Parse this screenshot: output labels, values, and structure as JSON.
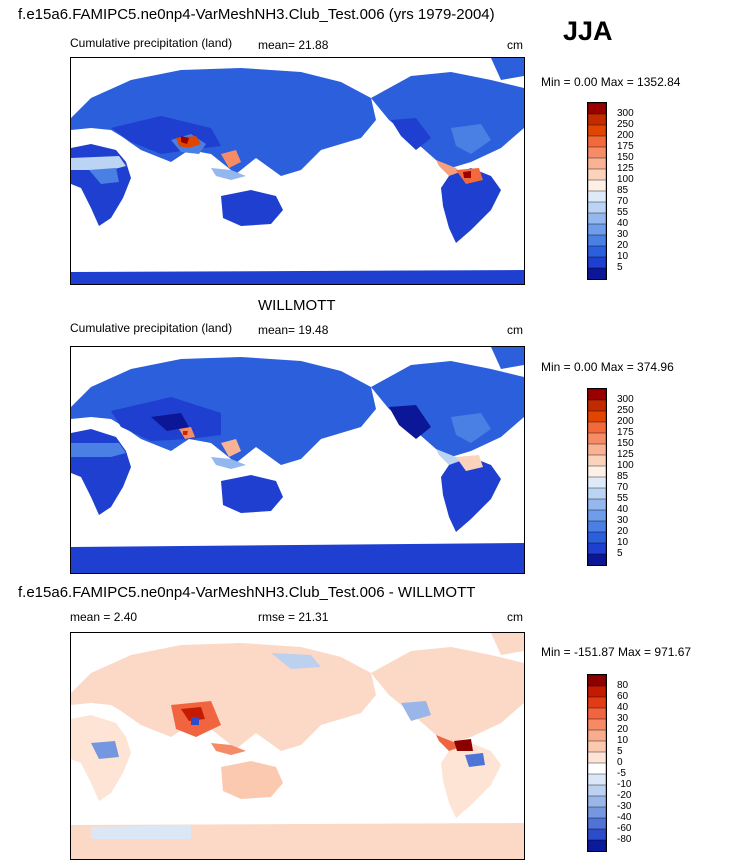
{
  "season": "JJA",
  "panels": [
    {
      "header": "f.e15a6.FAMIPC5.ne0np4-VarMeshNH3.Club_Test.006 (yrs 1979-2004)",
      "left_label": "Cumulative precipitation (land)",
      "mean_label": "mean=  21.88",
      "units": "cm",
      "minmax": "Min =   0.00 Max = 1352.84",
      "colorbar_labels": [
        "300",
        "250",
        "200",
        "175",
        "150",
        "125",
        "100",
        "85",
        "70",
        "55",
        "40",
        "30",
        "20",
        "10",
        "5"
      ],
      "colors": [
        "#990000",
        "#c42a00",
        "#e24500",
        "#f26a3c",
        "#f68c66",
        "#f9b394",
        "#fbd3bc",
        "#fef0e6",
        "#dfeaf8",
        "#bcd4f3",
        "#93b7ee",
        "#6f9de9",
        "#4a7fe3",
        "#2c5fdc",
        "#1e3fcf",
        "#0b1796"
      ]
    },
    {
      "header": "WILLMOTT",
      "left_label": "Cumulative precipitation (land)",
      "mean_label": "mean=  19.48",
      "units": "cm",
      "minmax": "Min =   0.00 Max = 374.96",
      "colorbar_labels": [
        "300",
        "250",
        "200",
        "175",
        "150",
        "125",
        "100",
        "85",
        "70",
        "55",
        "40",
        "30",
        "20",
        "10",
        "5"
      ],
      "colors": [
        "#990000",
        "#c42a00",
        "#e24500",
        "#f26a3c",
        "#f68c66",
        "#f9b394",
        "#fbd3bc",
        "#fef0e6",
        "#dfeaf8",
        "#bcd4f3",
        "#93b7ee",
        "#6f9de9",
        "#4a7fe3",
        "#2c5fdc",
        "#1e3fcf",
        "#0b1796"
      ]
    },
    {
      "header": "f.e15a6.FAMIPC5.ne0np4-VarMeshNH3.Club_Test.006 - WILLMOTT",
      "left_label": "mean =   2.40",
      "mean_label": "rmse =  21.31",
      "units": "cm",
      "minmax": "Min = -151.87 Max = 971.67",
      "colorbar_labels": [
        "80",
        "60",
        "40",
        "30",
        "20",
        "10",
        "5",
        "0",
        "-5",
        "-10",
        "-20",
        "-30",
        "-40",
        "-60",
        "-80"
      ],
      "colors": [
        "#8c0000",
        "#c41a00",
        "#e23c14",
        "#f06440",
        "#f68a66",
        "#f9ac8c",
        "#fbc9b0",
        "#fde4d4",
        "#ffffff",
        "#dbe7f6",
        "#bcd0f0",
        "#9ab6e8",
        "#7597e0",
        "#4f73d6",
        "#2d4ccb",
        "#0a1a9a"
      ]
    }
  ],
  "chart_data": [
    {
      "type": "heatmap",
      "title": "f.e15a6.FAMIPC5.ne0np4-VarMeshNH3.Club_Test.006 (yrs 1979-2004)",
      "subtitle": "Cumulative precipitation (land)",
      "season": "JJA",
      "mean": 21.88,
      "min": 0.0,
      "max": 1352.84,
      "units": "cm",
      "levels": [
        5,
        10,
        20,
        30,
        40,
        55,
        70,
        85,
        100,
        125,
        150,
        175,
        200,
        250,
        300
      ]
    },
    {
      "type": "heatmap",
      "title": "WILLMOTT",
      "subtitle": "Cumulative precipitation (land)",
      "mean": 19.48,
      "min": 0.0,
      "max": 374.96,
      "units": "cm",
      "levels": [
        5,
        10,
        20,
        30,
        40,
        55,
        70,
        85,
        100,
        125,
        150,
        175,
        200,
        250,
        300
      ]
    },
    {
      "type": "heatmap",
      "title": "f.e15a6.FAMIPC5.ne0np4-VarMeshNH3.Club_Test.006 - WILLMOTT",
      "mean": 2.4,
      "rmse": 21.31,
      "min": -151.87,
      "max": 971.67,
      "units": "cm",
      "levels": [
        -80,
        -60,
        -40,
        -30,
        -20,
        -10,
        -5,
        0,
        5,
        10,
        20,
        30,
        40,
        60,
        80
      ]
    }
  ]
}
